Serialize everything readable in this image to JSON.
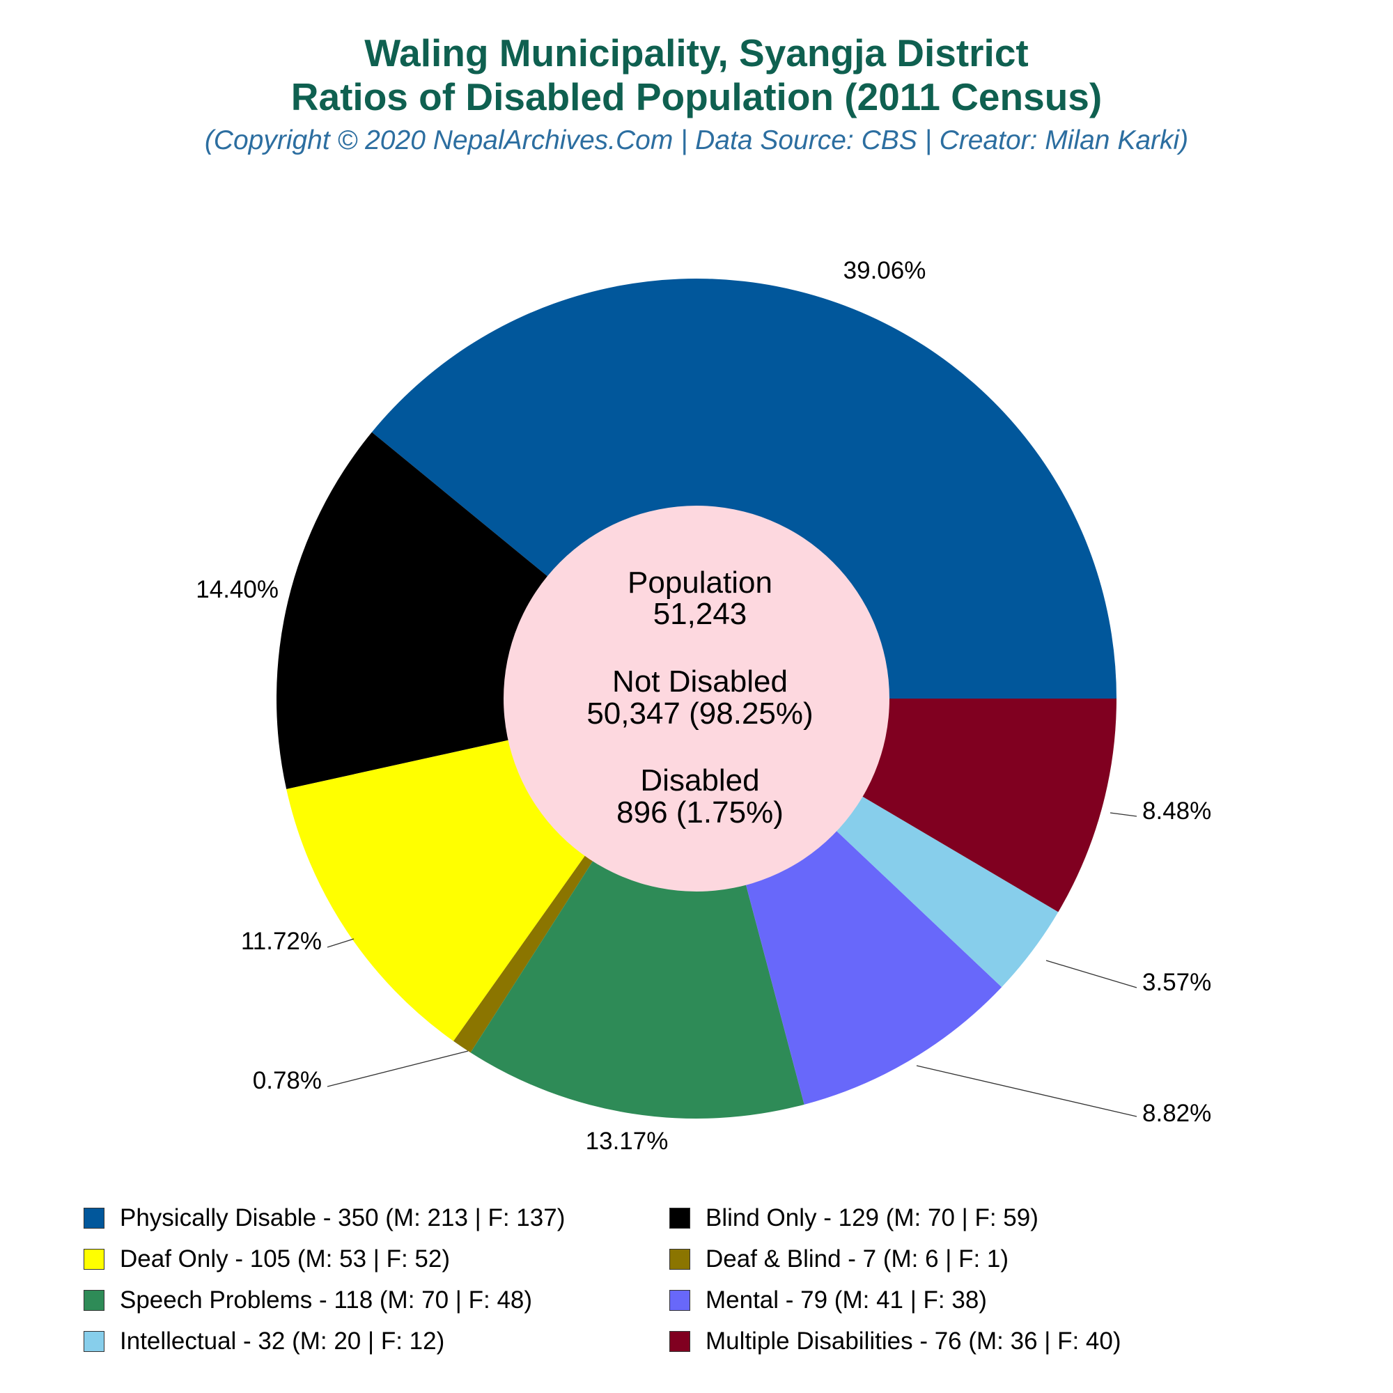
{
  "header": {
    "title_line1": "Waling Municipality, Syangja District",
    "title_line2": "Ratios of Disabled Population (2011 Census)",
    "subtitle": "(Copyright © 2020 NepalArchives.Com | Data Source: CBS | Creator: Milan Karki)"
  },
  "chart_data": {
    "type": "pie",
    "style": "donut",
    "title": "Waling Municipality, Syangja District Ratios of Disabled Population (2011 Census)",
    "slices": [
      {
        "label": "Physically Disable",
        "value": 350,
        "male": 213,
        "female": 137,
        "percent_label": "39.06%",
        "color": "#01579b",
        "legend": "Physically Disable - 350 (M: 213 | F: 137)"
      },
      {
        "label": "Blind Only",
        "value": 129,
        "male": 70,
        "female": 59,
        "percent_label": "14.40%",
        "color": "#000000",
        "legend": "Blind Only - 129 (M: 70 | F: 59)"
      },
      {
        "label": "Deaf Only",
        "value": 105,
        "male": 53,
        "female": 52,
        "percent_label": "11.72%",
        "color": "#ffff00",
        "legend": "Deaf Only - 105 (M: 53 | F: 52)"
      },
      {
        "label": "Deaf & Blind",
        "value": 7,
        "male": 6,
        "female": 1,
        "percent_label": "0.78%",
        "color": "#8b7500",
        "legend": "Deaf & Blind - 7 (M: 6 | F: 1)"
      },
      {
        "label": "Speech Problems",
        "value": 118,
        "male": 70,
        "female": 48,
        "percent_label": "13.17%",
        "color": "#2e8b57",
        "legend": "Speech Problems - 118 (M: 70 | F: 48)"
      },
      {
        "label": "Mental",
        "value": 79,
        "male": 41,
        "female": 38,
        "percent_label": "8.82%",
        "color": "#6868fa",
        "legend": "Mental - 79 (M: 41 | F: 38)"
      },
      {
        "label": "Intellectual",
        "value": 32,
        "male": 20,
        "female": 12,
        "percent_label": "3.57%",
        "color": "#87ceeb",
        "legend": "Intellectual - 32 (M: 20 | F: 12)"
      },
      {
        "label": "Multiple Disabilities",
        "value": 76,
        "male": 36,
        "female": 40,
        "percent_label": "8.48%",
        "color": "#800020",
        "legend": "Multiple Disabilities - 76 (M: 36 | F: 40)"
      }
    ],
    "center": {
      "population_label": "Population",
      "population_value": "51,243",
      "not_disabled_label": "Not Disabled",
      "not_disabled_value": "50,347 (98.25%)",
      "disabled_label": "Disabled",
      "disabled_value": "896 (1.75%)",
      "color": "#fdd8df"
    },
    "legend_position": "bottom"
  }
}
